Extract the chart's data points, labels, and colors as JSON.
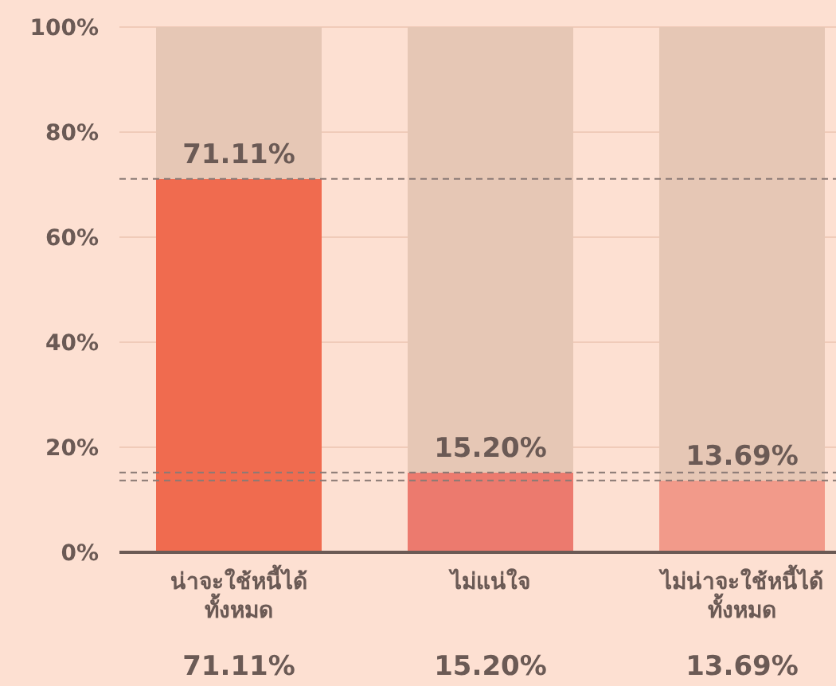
{
  "chart_data": {
    "type": "bar",
    "stacked": true,
    "categories": [
      "น่าจะใช้หนี้ได้ทั้งหมด",
      "ไม่แน่ใจ",
      "ไม่น่าจะใช้หนี้ได้ทั้งหมด"
    ],
    "series": [
      {
        "values": [
          71.11,
          15.2,
          13.69
        ],
        "colors": [
          "#f06b4f",
          "#ec7a6e",
          "#f29a8a"
        ],
        "value_labels": [
          "71.11%",
          "15.20%",
          "13.69%"
        ]
      },
      {
        "values": [
          28.89,
          84.8,
          86.31
        ],
        "color": "#e6c7b5"
      }
    ],
    "ylim": [
      0,
      100
    ],
    "yticks": [
      {
        "value": 0,
        "label": "0%"
      },
      {
        "value": 20,
        "label": "20%"
      },
      {
        "value": 40,
        "label": "40%"
      },
      {
        "value": 60,
        "label": "60%"
      },
      {
        "value": 80,
        "label": "80%"
      },
      {
        "value": 100,
        "label": "100%"
      }
    ],
    "grid": "y",
    "ref_lines": [
      {
        "axis": "y",
        "value": 71.11,
        "color": "#8a7a75",
        "line_style": "dashed"
      },
      {
        "axis": "y",
        "value": 15.2,
        "color": "#8a7a75",
        "line_style": "dashed"
      },
      {
        "axis": "y",
        "value": 13.69,
        "color": "#8a7a75",
        "line_style": "dashed"
      }
    ]
  }
}
